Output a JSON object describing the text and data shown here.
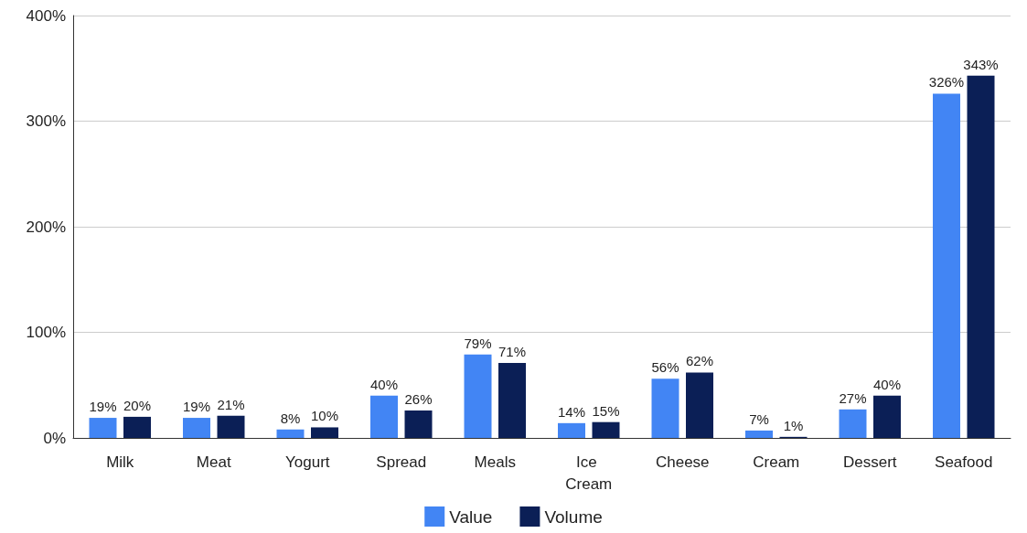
{
  "chart_data": {
    "type": "bar",
    "categories": [
      "Milk",
      "Meat",
      "Yogurt",
      "Spread",
      "Meals",
      "Ice Cream",
      "Cheese",
      "Cream",
      "Dessert",
      "Seafood"
    ],
    "series": [
      {
        "name": "Value",
        "color": "#4285f4",
        "values": [
          19,
          19,
          8,
          40,
          79,
          14,
          56,
          7,
          27,
          326
        ],
        "value_labels": [
          "19%",
          "19%",
          "8%",
          "40%",
          "79%",
          "14%",
          "56%",
          "7%",
          "27%",
          "326%"
        ]
      },
      {
        "name": "Volume",
        "color": "#0b1f56",
        "values": [
          20,
          21,
          10,
          26,
          71,
          15,
          62,
          1,
          40,
          343
        ],
        "value_labels": [
          "20%",
          "21%",
          "10%",
          "26%",
          "71%",
          "15%",
          "62%",
          "1%",
          "40%",
          "343%"
        ]
      }
    ],
    "ylim": [
      0,
      400
    ],
    "yticks": [
      {
        "value": 0,
        "label": "0%"
      },
      {
        "value": 100,
        "label": "100%"
      },
      {
        "value": 200,
        "label": "200%"
      },
      {
        "value": 300,
        "label": "300%"
      },
      {
        "value": 400,
        "label": "400%"
      }
    ],
    "grid": "y",
    "legend": "bottom"
  }
}
